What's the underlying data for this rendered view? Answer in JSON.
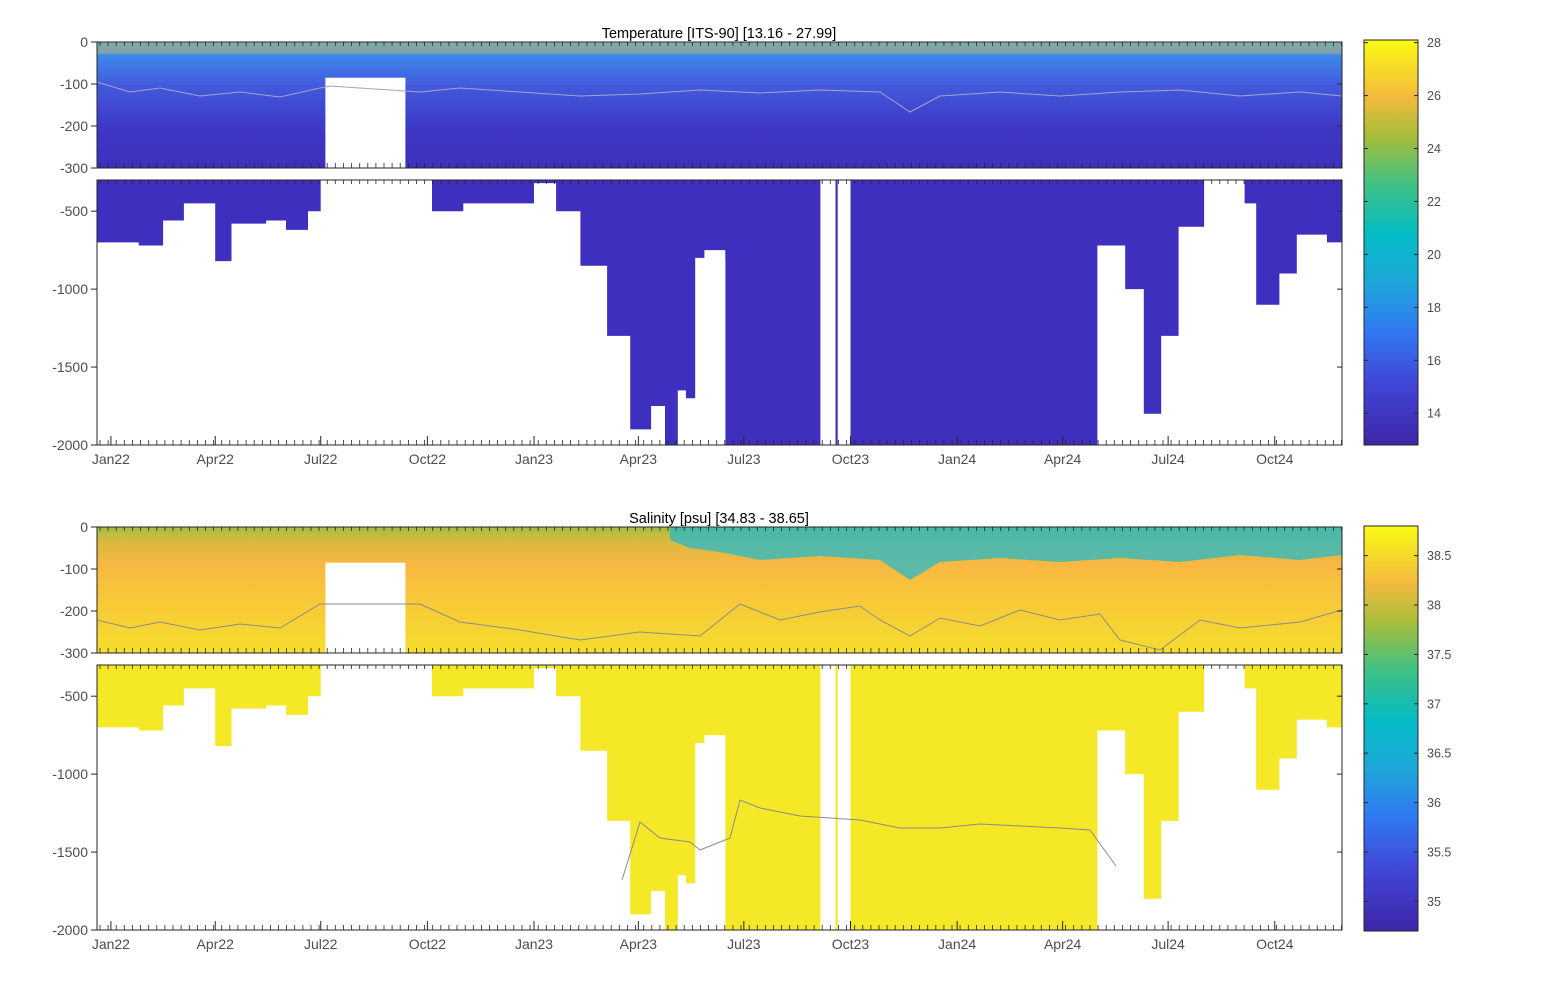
{
  "chart_data": [
    {
      "type": "heatmap",
      "title": "Temperature [ITS-90]   [13.16 - 27.99]",
      "x_tick_labels": [
        "Jan22",
        "Apr22",
        "Jul22",
        "Oct22",
        "Jan23",
        "Apr23",
        "Jul23",
        "Oct23",
        "Jan24",
        "Apr24",
        "Jul24",
        "Oct24"
      ],
      "xlim": [
        "2021-12-20",
        "2024-11-28"
      ],
      "upper_y_ticks": [
        "0",
        "-100",
        "-200",
        "-300"
      ],
      "upper_ylim": [
        -300,
        0
      ],
      "lower_y_ticks": [
        "-500",
        "-1000",
        "-1500",
        "-2000"
      ],
      "lower_ylim": [
        -2000,
        -300
      ],
      "colorbar_ticks": [
        "28",
        "26",
        "24",
        "22",
        "20",
        "18",
        "16",
        "14"
      ],
      "colorbar_range": [
        12.8,
        28.1
      ],
      "colors": {
        "surface_warm": "#f9be3e",
        "mixed": "#3f9ae8",
        "deep": "#3f2fbf"
      },
      "deep_value": 13.5,
      "max_depth_profile": [
        {
          "date": "2021-12-20",
          "depth": -700
        },
        {
          "date": "2022-01-25",
          "depth": -720
        },
        {
          "date": "2022-02-15",
          "depth": -560
        },
        {
          "date": "2022-03-05",
          "depth": -450
        },
        {
          "date": "2022-04-01",
          "depth": -820
        },
        {
          "date": "2022-04-15",
          "depth": -580
        },
        {
          "date": "2022-05-15",
          "depth": -560
        },
        {
          "date": "2022-06-01",
          "depth": -620
        },
        {
          "date": "2022-06-20",
          "depth": -500
        },
        {
          "date": "2022-07-01",
          "depth": -300
        },
        {
          "date": "2022-09-15",
          "depth": -300
        },
        {
          "date": "2022-10-05",
          "depth": -500
        },
        {
          "date": "2022-11-01",
          "depth": -450
        },
        {
          "date": "2023-01-01",
          "depth": -320
        },
        {
          "date": "2023-01-20",
          "depth": -500
        },
        {
          "date": "2023-02-10",
          "depth": -850
        },
        {
          "date": "2023-03-05",
          "depth": -1300
        },
        {
          "date": "2023-03-25",
          "depth": -1900
        },
        {
          "date": "2023-04-15",
          "depth": -2000
        },
        {
          "date": "2023-05-10",
          "depth": -1700
        },
        {
          "date": "2023-05-28",
          "depth": -750
        },
        {
          "date": "2023-06-15",
          "depth": -2000
        },
        {
          "date": "2023-09-10",
          "depth": -2000
        },
        {
          "date": "2023-09-20",
          "depth": -300
        },
        {
          "date": "2023-10-01",
          "depth": -2000
        },
        {
          "date": "2024-04-20",
          "depth": -2000
        },
        {
          "date": "2024-05-01",
          "depth": -720
        },
        {
          "date": "2024-05-25",
          "depth": -1000
        },
        {
          "date": "2024-06-10",
          "depth": -1800
        },
        {
          "date": "2024-06-25",
          "depth": -1300
        },
        {
          "date": "2024-07-10",
          "depth": -600
        },
        {
          "date": "2024-08-01",
          "depth": -300
        },
        {
          "date": "2024-09-05",
          "depth": -450
        },
        {
          "date": "2024-09-15",
          "depth": -1100
        },
        {
          "date": "2024-10-05",
          "depth": -900
        },
        {
          "date": "2024-10-20",
          "depth": -650
        },
        {
          "date": "2024-11-15",
          "depth": -700
        }
      ],
      "data_gaps": [
        {
          "from": "2022-07-05",
          "to": "2022-09-12",
          "top": -85
        },
        {
          "from": "2023-04-12",
          "to": "2023-04-24",
          "top": -1750
        },
        {
          "from": "2023-05-05",
          "to": "2023-05-12",
          "top": -1650
        },
        {
          "from": "2023-05-20",
          "to": "2023-06-15",
          "top": -800
        },
        {
          "from": "2023-09-05",
          "to": "2023-09-18",
          "top": -300
        }
      ]
    },
    {
      "type": "heatmap",
      "title": "Salinity [psu]   [34.83 - 38.65]",
      "x_tick_labels": [
        "Jan22",
        "Apr22",
        "Jul22",
        "Oct22",
        "Jan23",
        "Apr23",
        "Jul23",
        "Oct23",
        "Jan24",
        "Apr24",
        "Jul24",
        "Oct24"
      ],
      "xlim": [
        "2021-12-20",
        "2024-11-28"
      ],
      "upper_y_ticks": [
        "0",
        "-100",
        "-200",
        "-300"
      ],
      "upper_ylim": [
        -300,
        0
      ],
      "lower_y_ticks": [
        "-500",
        "-1000",
        "-1500",
        "-2000"
      ],
      "lower_ylim": [
        -2000,
        -300
      ],
      "colorbar_ticks": [
        "38.5",
        "38",
        "37.5",
        "37",
        "36.5",
        "36",
        "35.5",
        "35"
      ],
      "colorbar_range": [
        34.7,
        38.8
      ],
      "colors": {
        "surface_fresh": "#27b9c9",
        "mid": "#f8b842",
        "deep": "#f4e827"
      },
      "deep_value": 38.6,
      "max_depth_profile": [
        {
          "date": "2021-12-20",
          "depth": -700
        },
        {
          "date": "2022-01-25",
          "depth": -720
        },
        {
          "date": "2022-02-15",
          "depth": -560
        },
        {
          "date": "2022-03-05",
          "depth": -450
        },
        {
          "date": "2022-04-01",
          "depth": -820
        },
        {
          "date": "2022-04-15",
          "depth": -580
        },
        {
          "date": "2022-05-15",
          "depth": -560
        },
        {
          "date": "2022-06-01",
          "depth": -620
        },
        {
          "date": "2022-06-20",
          "depth": -500
        },
        {
          "date": "2022-07-01",
          "depth": -300
        },
        {
          "date": "2022-09-15",
          "depth": -300
        },
        {
          "date": "2022-10-05",
          "depth": -500
        },
        {
          "date": "2022-11-01",
          "depth": -450
        },
        {
          "date": "2023-01-01",
          "depth": -320
        },
        {
          "date": "2023-01-20",
          "depth": -500
        },
        {
          "date": "2023-02-10",
          "depth": -850
        },
        {
          "date": "2023-03-05",
          "depth": -1300
        },
        {
          "date": "2023-03-25",
          "depth": -1900
        },
        {
          "date": "2023-04-15",
          "depth": -2000
        },
        {
          "date": "2023-05-10",
          "depth": -1700
        },
        {
          "date": "2023-05-28",
          "depth": -750
        },
        {
          "date": "2023-06-15",
          "depth": -2000
        },
        {
          "date": "2023-09-10",
          "depth": -2000
        },
        {
          "date": "2023-09-20",
          "depth": -300
        },
        {
          "date": "2023-10-01",
          "depth": -2000
        },
        {
          "date": "2024-04-20",
          "depth": -2000
        },
        {
          "date": "2024-05-01",
          "depth": -720
        },
        {
          "date": "2024-05-25",
          "depth": -1000
        },
        {
          "date": "2024-06-10",
          "depth": -1800
        },
        {
          "date": "2024-06-25",
          "depth": -1300
        },
        {
          "date": "2024-07-10",
          "depth": -600
        },
        {
          "date": "2024-08-01",
          "depth": -300
        },
        {
          "date": "2024-09-05",
          "depth": -450
        },
        {
          "date": "2024-09-15",
          "depth": -1100
        },
        {
          "date": "2024-10-05",
          "depth": -900
        },
        {
          "date": "2024-10-20",
          "depth": -650
        },
        {
          "date": "2024-11-15",
          "depth": -700
        }
      ],
      "data_gaps": [
        {
          "from": "2022-07-05",
          "to": "2022-09-12",
          "top": -85
        },
        {
          "from": "2023-04-12",
          "to": "2023-04-24",
          "top": -1750
        },
        {
          "from": "2023-05-05",
          "to": "2023-05-12",
          "top": -1650
        },
        {
          "from": "2023-05-20",
          "to": "2023-06-15",
          "top": -800
        },
        {
          "from": "2023-09-05",
          "to": "2023-09-18",
          "top": -300
        }
      ]
    }
  ]
}
